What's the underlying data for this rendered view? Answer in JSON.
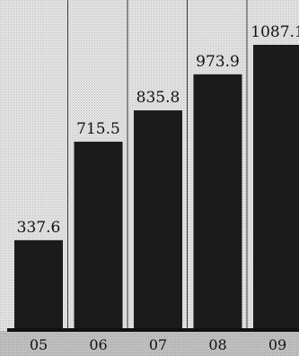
{
  "chart_data": {
    "type": "bar",
    "categories": [
      "05",
      "06",
      "07",
      "08",
      "09"
    ],
    "values": [
      337.6,
      715.5,
      835.8,
      973.9,
      1087.1
    ],
    "value_labels": [
      "337.6",
      "715.5",
      "835.8",
      "973.9",
      "1087.1"
    ],
    "title": "",
    "xlabel": "",
    "ylabel": "",
    "grid": false,
    "colors": {
      "background": "#c8c8c8",
      "bar": "#1b1b1b",
      "panel": "#e9e9e9",
      "text": "#111111"
    }
  }
}
